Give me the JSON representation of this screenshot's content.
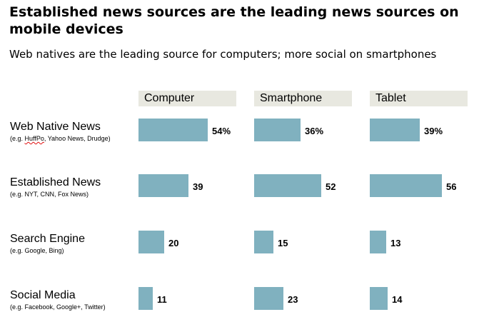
{
  "chart_data": {
    "type": "bar",
    "title": "Established news sources are the leading news sources on mobile devices",
    "subtitle": "Web natives are the leading source for computers; more social on smartphones",
    "panels": [
      "Computer",
      "Smartphone",
      "Tablet"
    ],
    "categories": [
      {
        "label": "Web Native News",
        "example": "(e.g. HuffPo, Yahoo News, Drudge)"
      },
      {
        "label": "Established News",
        "example": "(e.g. NYT, CNN, Fox News)"
      },
      {
        "label": "Search Engine",
        "example": "(e.g. Google, Bing)"
      },
      {
        "label": "Social Media",
        "example": "(e.g. Facebook, Google+, Twitter)"
      }
    ],
    "series": [
      {
        "name": "Computer",
        "values": [
          54,
          39,
          20,
          11
        ],
        "labels": [
          "54%",
          "39",
          "20",
          "11"
        ]
      },
      {
        "name": "Smartphone",
        "values": [
          36,
          52,
          15,
          23
        ],
        "labels": [
          "36%",
          "52",
          "15",
          "23"
        ]
      },
      {
        "name": "Tablet",
        "values": [
          39,
          56,
          13,
          14
        ],
        "labels": [
          "39%",
          "56",
          "13",
          "14"
        ]
      }
    ],
    "units": "percent",
    "bar_color": "#80b1bf",
    "header_color": "#e8e8e0",
    "grid": false,
    "legend": "none"
  }
}
